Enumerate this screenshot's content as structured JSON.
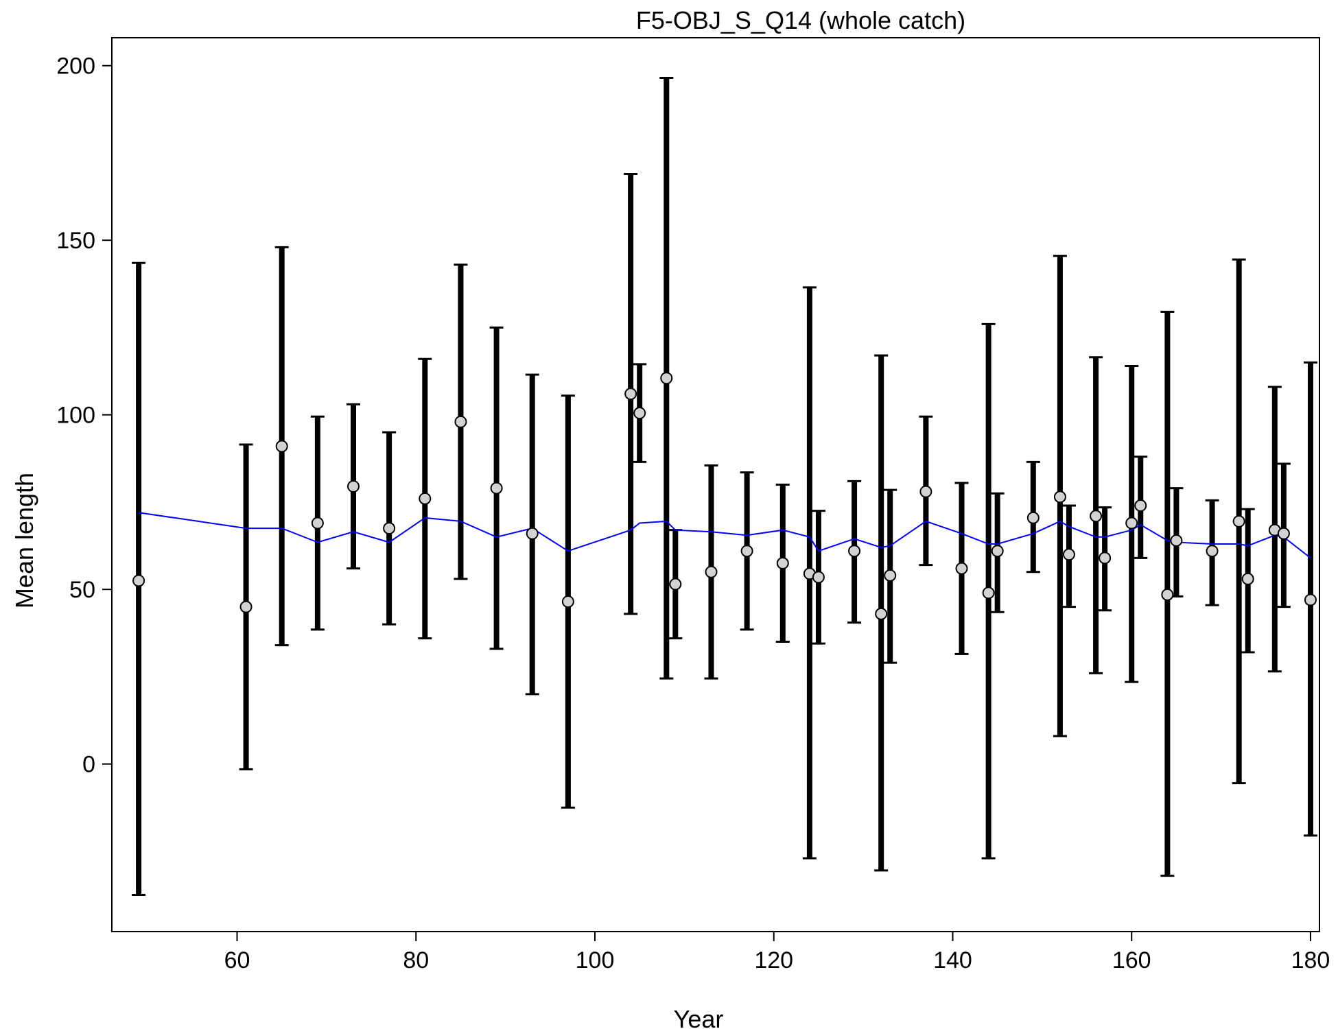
{
  "chart_data": {
    "type": "scatter",
    "title": "F5-OBJ_S_Q14 (whole catch)",
    "xlabel": "Year",
    "ylabel": "Mean length",
    "xlim": [
      46,
      181
    ],
    "ylim": [
      -48,
      208
    ],
    "x_ticks": [
      60,
      80,
      100,
      120,
      140,
      160,
      180
    ],
    "y_ticks": [
      0,
      50,
      100,
      150,
      200
    ],
    "grid": false,
    "colors": {
      "expected_line": "#0000ff",
      "points_fill": "#d3d3d3",
      "error_bars": "#000000"
    },
    "series": [
      {
        "kind": "observed",
        "points": [
          {
            "x": 49,
            "y": 52.5,
            "lo": -37.5,
            "hi": 143.5
          },
          {
            "x": 61,
            "y": 45,
            "lo": -1.5,
            "hi": 91.5
          },
          {
            "x": 65,
            "y": 91,
            "lo": 34,
            "hi": 148
          },
          {
            "x": 69,
            "y": 69,
            "lo": 38.5,
            "hi": 99.5
          },
          {
            "x": 73,
            "y": 79.5,
            "lo": 56,
            "hi": 103
          },
          {
            "x": 77,
            "y": 67.5,
            "lo": 40,
            "hi": 95
          },
          {
            "x": 81,
            "y": 76,
            "lo": 36,
            "hi": 116
          },
          {
            "x": 85,
            "y": 98,
            "lo": 53,
            "hi": 143
          },
          {
            "x": 89,
            "y": 79,
            "lo": 33,
            "hi": 125
          },
          {
            "x": 93,
            "y": 66,
            "lo": 20,
            "hi": 111.5
          },
          {
            "x": 97,
            "y": 46.5,
            "lo": -12.5,
            "hi": 105.5
          },
          {
            "x": 104,
            "y": 106,
            "lo": 43,
            "hi": 169
          },
          {
            "x": 105,
            "y": 100.5,
            "lo": 86.5,
            "hi": 114.5
          },
          {
            "x": 108,
            "y": 110.5,
            "lo": 24.5,
            "hi": 196.5
          },
          {
            "x": 109,
            "y": 51.5,
            "lo": 36,
            "hi": 67
          },
          {
            "x": 113,
            "y": 55,
            "lo": 24.5,
            "hi": 85.5
          },
          {
            "x": 117,
            "y": 61,
            "lo": 38.5,
            "hi": 83.5
          },
          {
            "x": 121,
            "y": 57.5,
            "lo": 35,
            "hi": 80
          },
          {
            "x": 124,
            "y": 54.5,
            "lo": -27,
            "hi": 136.5
          },
          {
            "x": 125,
            "y": 53.5,
            "lo": 34.5,
            "hi": 72.5
          },
          {
            "x": 129,
            "y": 61,
            "lo": 40.5,
            "hi": 81
          },
          {
            "x": 132,
            "y": 43,
            "lo": -30.5,
            "hi": 117
          },
          {
            "x": 133,
            "y": 54,
            "lo": 29,
            "hi": 78.5
          },
          {
            "x": 137,
            "y": 78,
            "lo": 57,
            "hi": 99.5
          },
          {
            "x": 141,
            "y": 56,
            "lo": 31.5,
            "hi": 80.5
          },
          {
            "x": 144,
            "y": 49,
            "lo": -27,
            "hi": 126
          },
          {
            "x": 145,
            "y": 61,
            "lo": 43.5,
            "hi": 77.5
          },
          {
            "x": 149,
            "y": 70.5,
            "lo": 55,
            "hi": 86.5
          },
          {
            "x": 152,
            "y": 76.5,
            "lo": 8,
            "hi": 145.5
          },
          {
            "x": 153,
            "y": 60,
            "lo": 45,
            "hi": 74
          },
          {
            "x": 156,
            "y": 71,
            "lo": 26,
            "hi": 116.5
          },
          {
            "x": 157,
            "y": 59,
            "lo": 44,
            "hi": 73.5
          },
          {
            "x": 160,
            "y": 69,
            "lo": 23.5,
            "hi": 114
          },
          {
            "x": 161,
            "y": 74,
            "lo": 59,
            "hi": 88
          },
          {
            "x": 164,
            "y": 48.5,
            "lo": -32,
            "hi": 129.5
          },
          {
            "x": 165,
            "y": 64,
            "lo": 48,
            "hi": 79
          },
          {
            "x": 169,
            "y": 61,
            "lo": 45.5,
            "hi": 75.5
          },
          {
            "x": 172,
            "y": 69.5,
            "lo": -5.5,
            "hi": 144.5
          },
          {
            "x": 173,
            "y": 53,
            "lo": 32,
            "hi": 73
          },
          {
            "x": 176,
            "y": 67,
            "lo": 26.5,
            "hi": 108
          },
          {
            "x": 177,
            "y": 66,
            "lo": 45,
            "hi": 86
          },
          {
            "x": 180,
            "y": 47,
            "lo": -20.5,
            "hi": 115
          }
        ]
      },
      {
        "kind": "expected",
        "x": [
          49,
          61,
          65,
          69,
          73,
          77,
          81,
          85,
          89,
          93,
          97,
          104,
          105,
          108,
          109,
          113,
          117,
          121,
          124,
          125,
          129,
          132,
          133,
          137,
          141,
          144,
          145,
          149,
          152,
          153,
          156,
          157,
          160,
          161,
          164,
          165,
          169,
          172,
          173,
          176,
          177,
          180
        ],
        "y": [
          72,
          67.5,
          67.5,
          63.5,
          66.5,
          63.5,
          70.5,
          69.5,
          65,
          67.5,
          61,
          67,
          69,
          69.5,
          67,
          66.5,
          65.5,
          67,
          65,
          61,
          64.5,
          62,
          62.5,
          69.5,
          66,
          63,
          63,
          66,
          69.5,
          68,
          65,
          65,
          67,
          68.5,
          64,
          63.5,
          63,
          63,
          62.5,
          65.5,
          65,
          59
        ]
      }
    ]
  }
}
